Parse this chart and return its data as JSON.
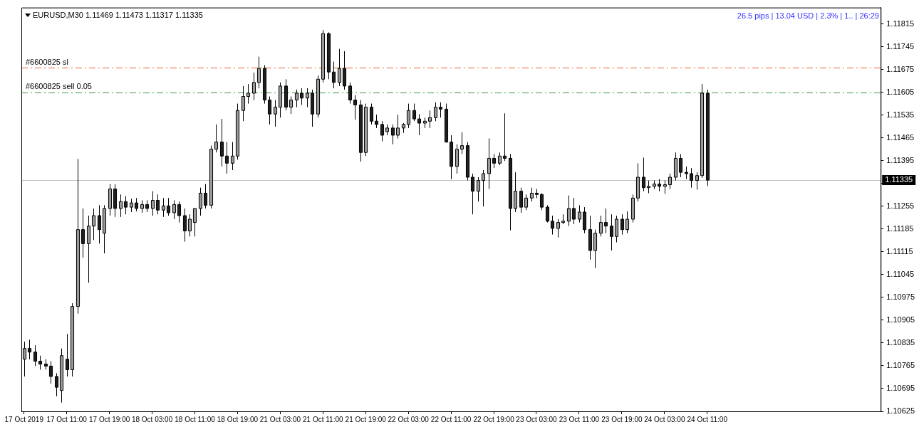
{
  "chart_data": {
    "type": "candlestick",
    "title": "EURUSD,M30  1.11469 1.11473 1.11317 1.11335",
    "annotations": [
      "26.5 pips | 13.04 USD | 2.3% | 1.. | 26:29"
    ],
    "categories": [
      "17 Oct 2019",
      null,
      null,
      null,
      null,
      null,
      null,
      null,
      "17 Oct 11:00",
      null,
      null,
      null,
      null,
      null,
      null,
      null,
      "17 Oct 19:00",
      null,
      null,
      null,
      null,
      null,
      null,
      null,
      "18 Oct 03:00",
      null,
      null,
      null,
      null,
      null,
      null,
      null,
      "18 Oct 11:00",
      null,
      null,
      null,
      null,
      null,
      null,
      null,
      "18 Oct 19:00",
      null,
      null,
      null,
      null,
      null,
      null,
      null,
      "21 Oct 03:00",
      null,
      null,
      null,
      null,
      null,
      null,
      null,
      "21 Oct 11:00",
      null,
      null,
      null,
      null,
      null,
      null,
      null,
      "21 Oct 19:00",
      null,
      null,
      null,
      null,
      null,
      null,
      null,
      "22 Oct 03:00",
      null,
      null,
      null,
      null,
      null,
      null,
      null,
      "22 Oct 11:00",
      null,
      null,
      null,
      null,
      null,
      null,
      null,
      "22 Oct 19:00",
      null,
      null,
      null,
      null,
      null,
      null,
      null,
      "23 Oct 03:00",
      null,
      null,
      null,
      null,
      null,
      null,
      null,
      "23 Oct 11:00",
      null,
      null,
      null,
      null,
      null,
      null,
      null,
      "23 Oct 19:00",
      null,
      null,
      null,
      null,
      null,
      null,
      null,
      "24 Oct 03:00",
      null,
      null,
      null,
      null,
      null,
      null,
      null,
      "24 Oct 11:00",
      null,
      null,
      null,
      null,
      null,
      null,
      null,
      null,
      null,
      null,
      null,
      null,
      null,
      null,
      null,
      null,
      null,
      null,
      null,
      null,
      null,
      null,
      null,
      null,
      null,
      null,
      null,
      null,
      null,
      null,
      null,
      null
    ],
    "ohlc": [
      [
        1.10785,
        1.10839,
        1.10732,
        1.10818
      ],
      [
        1.10818,
        1.10845,
        1.10785,
        1.10807
      ],
      [
        1.10807,
        1.10828,
        1.10764,
        1.10779
      ],
      [
        1.10779,
        1.10796,
        1.10753,
        1.1077
      ],
      [
        1.1077,
        1.10785,
        1.10753,
        1.10764
      ],
      [
        1.10764,
        1.10779,
        1.1071,
        1.10732
      ],
      [
        1.10732,
        1.10742,
        1.10671,
        1.10699
      ],
      [
        1.10689,
        1.10818,
        1.10652,
        1.10796
      ],
      [
        1.10785,
        1.10863,
        1.10732,
        1.10753
      ],
      [
        1.10753,
        1.10957,
        1.10732,
        1.10947
      ],
      [
        1.10947,
        1.114,
        1.10925,
        1.11183
      ],
      [
        1.11183,
        1.11248,
        1.11097,
        1.1114
      ],
      [
        1.1114,
        1.11226,
        1.1102,
        1.11194
      ],
      [
        1.11194,
        1.11248,
        1.11151,
        1.11226
      ],
      [
        1.11226,
        1.11258,
        1.1114,
        1.11183
      ],
      [
        1.11172,
        1.11258,
        1.1111,
        1.11248
      ],
      [
        1.11248,
        1.11323,
        1.11226,
        1.11308
      ],
      [
        1.11308,
        1.11323,
        1.11222,
        1.11248
      ],
      [
        1.11248,
        1.11291,
        1.11222,
        1.11269
      ],
      [
        1.11269,
        1.11286,
        1.1123,
        1.11252
      ],
      [
        1.11252,
        1.11278,
        1.11237,
        1.11265
      ],
      [
        1.11265,
        1.1128,
        1.11239,
        1.11248
      ],
      [
        1.11248,
        1.11273,
        1.11235,
        1.1126
      ],
      [
        1.1126,
        1.11273,
        1.11237,
        1.11248
      ],
      [
        1.11248,
        1.11301,
        1.11226,
        1.11273
      ],
      [
        1.11273,
        1.11291,
        1.1123,
        1.11243
      ],
      [
        1.11243,
        1.1128,
        1.11222,
        1.11256
      ],
      [
        1.11256,
        1.1128,
        1.11226,
        1.11235
      ],
      [
        1.11235,
        1.11273,
        1.11215,
        1.1126
      ],
      [
        1.1126,
        1.11269,
        1.11205,
        1.11226
      ],
      [
        1.11226,
        1.11248,
        1.11146,
        1.11179
      ],
      [
        1.11179,
        1.1123,
        1.11162,
        1.11215
      ],
      [
        1.11205,
        1.11248,
        1.11162,
        1.11248
      ],
      [
        1.11248,
        1.11312,
        1.11226,
        1.11295
      ],
      [
        1.11295,
        1.11323,
        1.11248,
        1.11258
      ],
      [
        1.11258,
        1.11441,
        1.11248,
        1.1143
      ],
      [
        1.1143,
        1.11506,
        1.1142,
        1.11452
      ],
      [
        1.11452,
        1.11523,
        1.11377,
        1.11409
      ],
      [
        1.11409,
        1.11452,
        1.11355,
        1.11387
      ],
      [
        1.11387,
        1.11452,
        1.11366,
        1.11409
      ],
      [
        1.11409,
        1.1157,
        1.11398,
        1.11549
      ],
      [
        1.11549,
        1.11624,
        1.11516,
        1.11592
      ],
      [
        1.11592,
        1.1163,
        1.1157,
        1.11602
      ],
      [
        1.11602,
        1.11665,
        1.11581,
        1.11635
      ],
      [
        1.11635,
        1.11714,
        1.11617,
        1.11678
      ],
      [
        1.11678,
        1.11688,
        1.1157,
        1.11581
      ],
      [
        1.11581,
        1.11592,
        1.11506,
        1.11538
      ],
      [
        1.11538,
        1.11581,
        1.11499,
        1.11559
      ],
      [
        1.11559,
        1.11635,
        1.11527,
        1.11624
      ],
      [
        1.11624,
        1.11645,
        1.11549,
        1.11559
      ],
      [
        1.11559,
        1.11592,
        1.11538,
        1.11581
      ],
      [
        1.11581,
        1.11613,
        1.11559,
        1.11602
      ],
      [
        1.11602,
        1.11617,
        1.11566,
        1.11587
      ],
      [
        1.11587,
        1.11617,
        1.11559,
        1.11602
      ],
      [
        1.11602,
        1.11613,
        1.11499,
        1.11538
      ],
      [
        1.11538,
        1.11656,
        1.11527,
        1.11645
      ],
      [
        1.11645,
        1.11796,
        1.11635,
        1.11785
      ],
      [
        1.11785,
        1.11789,
        1.11645,
        1.11667
      ],
      [
        1.11667,
        1.11699,
        1.11617,
        1.11635
      ],
      [
        1.11635,
        1.11738,
        1.11624,
        1.11678
      ],
      [
        1.11678,
        1.11731,
        1.11613,
        1.11624
      ],
      [
        1.11624,
        1.11635,
        1.1157,
        1.11581
      ],
      [
        1.11581,
        1.11596,
        1.11521,
        1.11566
      ],
      [
        1.11566,
        1.11581,
        1.11392,
        1.1142
      ],
      [
        1.1142,
        1.1157,
        1.11409,
        1.11559
      ],
      [
        1.11559,
        1.1157,
        1.11506,
        1.11516
      ],
      [
        1.11516,
        1.11536,
        1.11495,
        1.11506
      ],
      [
        1.11506,
        1.11516,
        1.11454,
        1.11473
      ],
      [
        1.11484,
        1.11506,
        1.11473,
        1.11495
      ],
      [
        1.11495,
        1.11506,
        1.11445,
        1.11473
      ],
      [
        1.11473,
        1.11536,
        1.11463,
        1.11495
      ],
      [
        1.11495,
        1.1151,
        1.1148,
        1.11506
      ],
      [
        1.11506,
        1.1157,
        1.11495,
        1.11549
      ],
      [
        1.11549,
        1.1157,
        1.11516,
        1.11523
      ],
      [
        1.11523,
        1.11538,
        1.11473,
        1.1151
      ],
      [
        1.1151,
        1.11527,
        1.11495,
        1.11516
      ],
      [
        1.11516,
        1.11549,
        1.11495,
        1.11527
      ],
      [
        1.11527,
        1.11574,
        1.11516,
        1.11559
      ],
      [
        1.11559,
        1.11574,
        1.11527,
        1.11553
      ],
      [
        1.11553,
        1.1157,
        1.1145,
        1.11452
      ],
      [
        1.11452,
        1.11473,
        1.11338,
        1.11377
      ],
      [
        1.11377,
        1.11445,
        1.11355,
        1.1143
      ],
      [
        1.1143,
        1.11482,
        1.11415,
        1.11441
      ],
      [
        1.11441,
        1.11452,
        1.11334,
        1.11344
      ],
      [
        1.11344,
        1.11355,
        1.1123,
        1.11301
      ],
      [
        1.11301,
        1.11344,
        1.11269,
        1.11334
      ],
      [
        1.11334,
        1.11366,
        1.11254,
        1.11355
      ],
      [
        1.11355,
        1.11463,
        1.11308,
        1.11402
      ],
      [
        1.11402,
        1.11415,
        1.11372,
        1.11387
      ],
      [
        1.11387,
        1.1142,
        1.11381,
        1.11409
      ],
      [
        1.11409,
        1.1154,
        1.11394,
        1.11402
      ],
      [
        1.11402,
        1.11415,
        1.11181,
        1.11248
      ],
      [
        1.11248,
        1.11359,
        1.11237,
        1.11301
      ],
      [
        1.11301,
        1.11312,
        1.11235,
        1.11252
      ],
      [
        1.11252,
        1.11291,
        1.11243,
        1.1128
      ],
      [
        1.1128,
        1.11312,
        1.11269,
        1.11295
      ],
      [
        1.11295,
        1.11308,
        1.1128,
        1.11291
      ],
      [
        1.11291,
        1.11295,
        1.11243,
        1.11252
      ],
      [
        1.11252,
        1.11258,
        1.11205,
        1.11209
      ],
      [
        1.11209,
        1.11226,
        1.11168,
        1.11187
      ],
      [
        1.11187,
        1.11215,
        1.11159,
        1.11205
      ],
      [
        1.11205,
        1.1123,
        1.112,
        1.11209
      ],
      [
        1.11209,
        1.11288,
        1.11194,
        1.11248
      ],
      [
        1.11248,
        1.1128,
        1.112,
        1.11215
      ],
      [
        1.11215,
        1.11258,
        1.11205,
        1.11237
      ],
      [
        1.11237,
        1.11252,
        1.11172,
        1.11183
      ],
      [
        1.11183,
        1.11226,
        1.11091,
        1.11119
      ],
      [
        1.11119,
        1.11183,
        1.11065,
        1.11172
      ],
      [
        1.11172,
        1.11226,
        1.11162,
        1.11205
      ],
      [
        1.11205,
        1.11248,
        1.11172,
        1.11194
      ],
      [
        1.11194,
        1.1123,
        1.11119,
        1.11162
      ],
      [
        1.11162,
        1.11226,
        1.11144,
        1.11215
      ],
      [
        1.11215,
        1.1123,
        1.11168,
        1.11183
      ],
      [
        1.11183,
        1.11239,
        1.11172,
        1.11215
      ],
      [
        1.11215,
        1.11291,
        1.11205,
        1.1128
      ],
      [
        1.1128,
        1.11387,
        1.11269,
        1.11344
      ],
      [
        1.11344,
        1.11404,
        1.11301,
        1.11312
      ],
      [
        1.11312,
        1.11334,
        1.11295,
        1.11316
      ],
      [
        1.11316,
        1.11334,
        1.11308,
        1.11323
      ],
      [
        1.11323,
        1.11338,
        1.11301,
        1.11316
      ],
      [
        1.11316,
        1.11334,
        1.11293,
        1.11321
      ],
      [
        1.11321,
        1.11355,
        1.11308,
        1.11344
      ],
      [
        1.11344,
        1.1142,
        1.11334,
        1.11402
      ],
      [
        1.11402,
        1.11415,
        1.11344,
        1.11359
      ],
      [
        1.11359,
        1.11377,
        1.11338,
        1.11355
      ],
      [
        1.11355,
        1.11372,
        1.11312,
        1.11334
      ],
      [
        1.11334,
        1.11359,
        1.11306,
        1.11349
      ],
      [
        1.11349,
        1.1163,
        1.11342,
        1.11602
      ],
      [
        1.11602,
        1.11613,
        1.11317,
        1.11335
      ],
      null,
      null,
      null,
      null,
      null,
      null,
      null,
      null,
      null,
      null,
      null,
      null,
      null,
      null,
      null,
      null,
      null,
      null,
      null,
      null,
      null,
      null,
      null,
      null,
      null,
      null,
      null,
      null,
      null,
      null,
      null,
      null
    ],
    "ylim": [
      1.10625,
      1.11865
    ],
    "yticks": [
      1.10625,
      1.10695,
      1.10765,
      1.10835,
      1.10905,
      1.10975,
      1.11045,
      1.11115,
      1.11185,
      1.11255,
      {
        "value": 1.11325,
        "label": null
      },
      1.11395,
      1.11465,
      1.11535,
      1.11605,
      1.11675,
      1.11745,
      1.11815
    ],
    "ref_lines": [
      {
        "axis": "y",
        "value": 1.1168,
        "label": "#6600825 sl",
        "color": "#e8602c",
        "line_style": "dashed"
      },
      {
        "axis": "y",
        "value": 1.11605,
        "label": "#6600825 sell 0.05",
        "color": "#3a9a3a",
        "line_style": "dashed"
      },
      {
        "axis": "y",
        "value": 1.11335,
        "label": "1.11335",
        "color": "#c0c0c0",
        "line_style": "solid"
      }
    ],
    "grid": false,
    "legend": false
  }
}
